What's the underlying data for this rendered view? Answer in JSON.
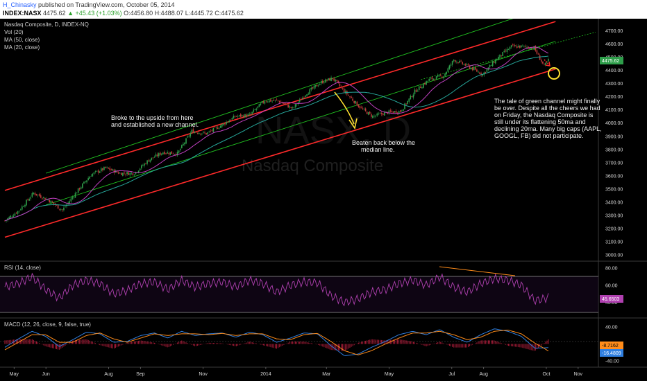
{
  "header": {
    "user": "H_Chinasky",
    "published": "published on TradingView.com, October 05, 2014",
    "symbol": "INDEX:NASX",
    "last": "4475.62",
    "change": "+45.43 (+1.03%)",
    "open": "O:4456.80",
    "high": "H:4488.07",
    "low": "L:4445.72",
    "close": "C:4475.62"
  },
  "legends": {
    "main": "Nasdaq Composite, D, INDEX-NQ",
    "vol": "Vol (20)",
    "ma50": "MA (50, close)",
    "ma20": "MA (20, close)",
    "rsi": "RSI (14, close)",
    "macd": "MACD (12, 26, close, 9, false, true)"
  },
  "watermark": {
    "big": "NASX, D",
    "name": "Nasdaq Composite"
  },
  "annotations": {
    "broke": [
      "Broke to the upside from here",
      "and established a new channel."
    ],
    "beaten": [
      "Beaten back below the",
      "median line."
    ],
    "tale": [
      "The tale of green channel might finally",
      "be over. Despite all the cheers we had",
      "on Friday, the Nasdaq Composite is",
      "still under its flattening 50ma and",
      "declining 20ma. Many big caps (AAPL,",
      "GOOGL, FB) did not participate."
    ]
  },
  "badges": {
    "price": "4475.62",
    "rsi": "45.6503",
    "macd": "-8.7162",
    "signal": "-16.4809"
  },
  "colors": {
    "background": "#000000",
    "candle_up": "#2e9e4a",
    "candle_down": "#c03a3a",
    "ma50": "#26a69a",
    "ma20": "#c040c0",
    "channel_red": "#ff2a2a",
    "channel_green": "#20c020",
    "rsi_line": "#b040b0",
    "macd_line": "#2f7fe0",
    "signal_line": "#ff8c1a",
    "histogram": "#c02040",
    "annotation_yellow": "#ffe030"
  },
  "chart_data": [
    {
      "type": "candlestick",
      "title": "Nasdaq Composite, D, INDEX-NQ",
      "y_ticks": [
        3000,
        3100,
        3200,
        3300,
        3400,
        3500,
        3600,
        3700,
        3800,
        3900,
        4000,
        4100,
        4200,
        4300,
        4400,
        4500,
        4600,
        4700
      ],
      "ylim": [
        2980,
        4760
      ],
      "x_ticks": [
        "May",
        "Jun",
        "Aug",
        "Sep",
        "Nov",
        "2014",
        "Mar",
        "May",
        "Jul",
        "Aug",
        "Oct",
        "Nov"
      ],
      "series": [
        {
          "name": "Nasdaq Composite",
          "dates": [
            "2013-04-22",
            "2013-05-06",
            "2013-05-20",
            "2013-06-03",
            "2013-06-17",
            "2013-07-01",
            "2013-07-15",
            "2013-07-29",
            "2013-08-12",
            "2013-08-26",
            "2013-09-09",
            "2013-09-23",
            "2013-10-07",
            "2013-10-21",
            "2013-11-04",
            "2013-11-18",
            "2013-12-02",
            "2013-12-16",
            "2013-12-31",
            "2014-01-13",
            "2014-01-27",
            "2014-02-10",
            "2014-02-24",
            "2014-03-07",
            "2014-03-21",
            "2014-04-04",
            "2014-04-15",
            "2014-04-28",
            "2014-05-12",
            "2014-05-26",
            "2014-06-09",
            "2014-06-23",
            "2014-07-03",
            "2014-07-17",
            "2014-07-31",
            "2014-08-14",
            "2014-08-28",
            "2014-09-08",
            "2014-09-19",
            "2014-09-29",
            "2014-10-03"
          ],
          "close": [
            3260,
            3340,
            3470,
            3420,
            3340,
            3480,
            3610,
            3660,
            3620,
            3620,
            3720,
            3780,
            3770,
            3940,
            3920,
            3980,
            4050,
            4060,
            4170,
            4170,
            4110,
            4230,
            4310,
            4340,
            4220,
            4110,
            4050,
            4080,
            4090,
            4240,
            4330,
            4360,
            4480,
            4430,
            4370,
            4490,
            4580,
            4580,
            4570,
            4430,
            4475.62
          ]
        }
      ],
      "channels": [
        {
          "name": "red upper",
          "color": "red",
          "from": [
            "2013-04-22",
            3490
          ],
          "to": [
            "2014-10-10",
            4770
          ]
        },
        {
          "name": "red lower",
          "color": "red",
          "from": [
            "2013-04-22",
            3135
          ],
          "to": [
            "2014-10-10",
            4410
          ]
        },
        {
          "name": "green upper",
          "color": "green",
          "from": [
            "2013-06-01",
            3620
          ],
          "to": [
            "2014-10-10",
            4900
          ]
        },
        {
          "name": "green lower",
          "color": "green",
          "from": [
            "2013-06-01",
            3380
          ],
          "to": [
            "2014-10-10",
            4620
          ]
        }
      ]
    },
    {
      "type": "line",
      "title": "RSI (14, close)",
      "y_ticks": [
        40,
        60,
        80
      ],
      "ylim": [
        25,
        85
      ],
      "series": [
        {
          "name": "RSI",
          "values": [
            58,
            62,
            70,
            55,
            45,
            60,
            66,
            62,
            50,
            54,
            62,
            64,
            55,
            66,
            58,
            62,
            64,
            58,
            66,
            62,
            52,
            60,
            64,
            63,
            48,
            40,
            44,
            52,
            55,
            62,
            66,
            60,
            70,
            58,
            52,
            62,
            68,
            66,
            60,
            42,
            45.65
          ]
        }
      ]
    },
    {
      "type": "line",
      "title": "MACD (12, 26, close, 9, false, true)",
      "y_ticks": [
        40,
        0,
        -40
      ],
      "ylim": [
        -50,
        55
      ],
      "series": [
        {
          "name": "MACD",
          "values": [
            -8,
            12,
            30,
            18,
            -6,
            10,
            28,
            24,
            4,
            6,
            20,
            26,
            14,
            30,
            20,
            24,
            26,
            16,
            28,
            22,
            4,
            14,
            26,
            24,
            -4,
            -28,
            -24,
            -8,
            6,
            22,
            30,
            22,
            34,
            16,
            4,
            22,
            36,
            30,
            18,
            -10,
            -8.7162
          ]
        },
        {
          "name": "Signal",
          "values": [
            -14,
            4,
            22,
            22,
            4,
            4,
            20,
            26,
            12,
            4,
            14,
            24,
            20,
            24,
            24,
            22,
            25,
            20,
            24,
            24,
            12,
            10,
            22,
            25,
            6,
            -16,
            -26,
            -16,
            0,
            14,
            26,
            26,
            30,
            22,
            10,
            16,
            30,
            33,
            24,
            2,
            -16.4809
          ]
        }
      ]
    }
  ]
}
